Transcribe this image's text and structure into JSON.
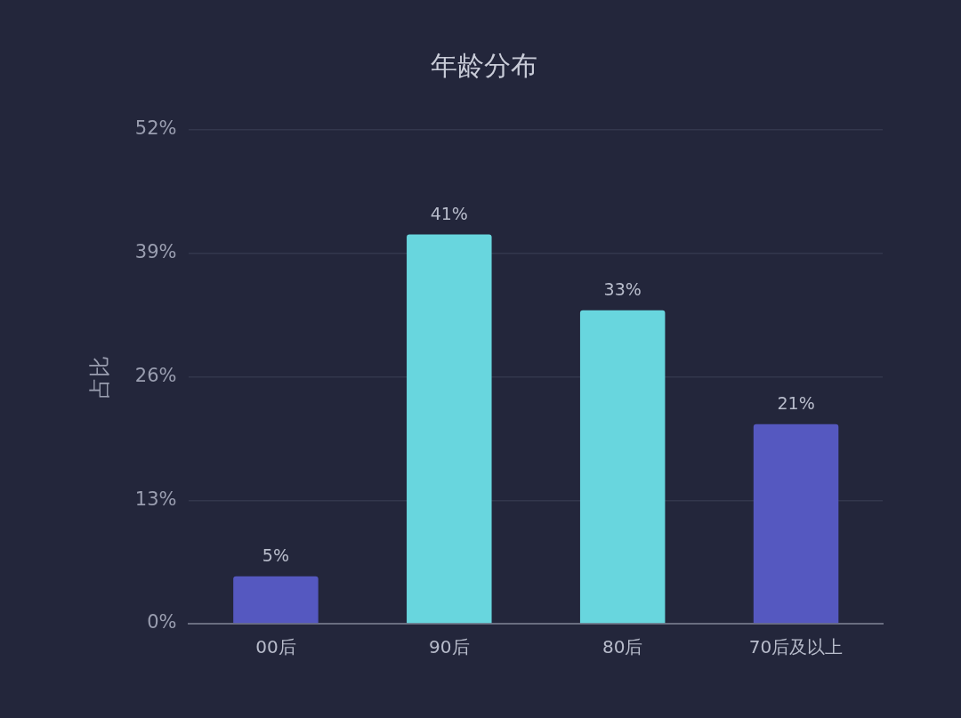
{
  "chart_data": {
    "type": "bar",
    "title": "年龄分布",
    "ylabel": "占比",
    "categories": [
      "00后",
      "90后",
      "80后",
      "70后及以上"
    ],
    "values": [
      5,
      41,
      33,
      21
    ],
    "colors": [
      "#5558c0",
      "#68d6de",
      "#68d6de",
      "#5558c0"
    ],
    "value_labels": [
      "5%",
      "41%",
      "33%",
      "21%"
    ],
    "ylim": [
      0,
      52
    ],
    "yticks": [
      {
        "value": 0,
        "label": "0%"
      },
      {
        "value": 13,
        "label": "13%"
      },
      {
        "value": 26,
        "label": "26%"
      },
      {
        "value": 39,
        "label": "39%"
      },
      {
        "value": 52,
        "label": "52%"
      }
    ],
    "grid": "y"
  }
}
